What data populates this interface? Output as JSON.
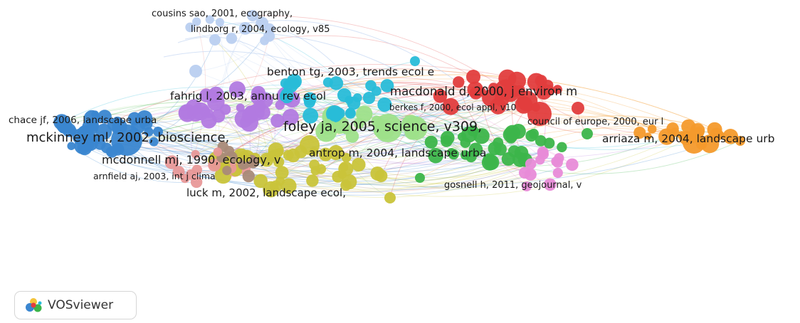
{
  "labels": [
    {
      "id": "cousins",
      "text": "cousins sao, 2001, ecography,"
    },
    {
      "id": "lindborg",
      "text": "lindborg r, 2004, ecology, v85"
    },
    {
      "id": "benton",
      "text": "benton tg, 2003, trends ecol e"
    },
    {
      "id": "fahrig",
      "text": "fahrig l, 2003, annu rev ecol"
    },
    {
      "id": "macdonald",
      "text": "macdonald d, 2000, j environ m"
    },
    {
      "id": "berkes",
      "text": "berkes f, 2000, ecol appl, v10"
    },
    {
      "id": "chace",
      "text": "chace jf, 2006, landscape urba"
    },
    {
      "id": "foley",
      "text": "foley ja, 2005, science, v309,"
    },
    {
      "id": "council",
      "text": "council of europe, 2000, eur l"
    },
    {
      "id": "mckinney",
      "text": "mckinney ml, 2002, bioscience,"
    },
    {
      "id": "arriaza",
      "text": "arriaza m, 2004, landscape urb"
    },
    {
      "id": "antrop",
      "text": "antrop m, 2004, landscape urba"
    },
    {
      "id": "mcdonnell",
      "text": "mcdonnell mj, 1990, ecology, v"
    },
    {
      "id": "arnfield",
      "text": "arnfield aj, 2003, int j clima"
    },
    {
      "id": "gosnell",
      "text": "gosnell h, 2011, geojournal, v"
    },
    {
      "id": "luck",
      "text": "luck m, 2002, landscape ecol,"
    }
  ],
  "clusters": {
    "blue": "#3a86d0",
    "light_blue": "#b9cff0",
    "cyan": "#28bcd8",
    "purple": "#b27ae0",
    "red": "#e23d3d",
    "light_green": "#9ee08a",
    "green": "#3cb54a",
    "yellow": "#c9c43a",
    "orange": "#f49a2c",
    "pink": "#e88bd8",
    "rose": "#e89898",
    "brown": "#a98a78"
  },
  "logo": {
    "text": "VOSviewer",
    "icon": "vosviewer-logo-icon"
  }
}
